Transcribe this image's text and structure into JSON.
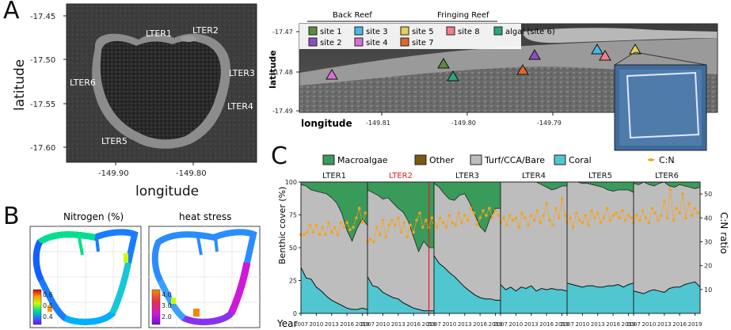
{
  "panels": {
    "a": {
      "letter": "A"
    },
    "b": {
      "letter": "B"
    },
    "c": {
      "letter": "C"
    }
  },
  "map_a": {
    "x_label": "longitude",
    "y_label": "latitude",
    "y_ticks": [
      "-17.45",
      "-17.50",
      "-17.55",
      "-17.60"
    ],
    "x_ticks": [
      "-149.90",
      "-149.80"
    ],
    "sites": [
      "LTER1",
      "LTER2",
      "LTER3",
      "LTER4",
      "LTER5",
      "LTER6"
    ]
  },
  "map_sites": {
    "x_label": "longitude",
    "y_label": "latitude",
    "y_ticks": [
      "-17.47",
      "-17.48",
      "-17.49"
    ],
    "x_ticks": [
      "-149.81",
      "-149.80",
      "-149.79"
    ],
    "legend": {
      "back_reef_title": "Back Reef",
      "fringing_reef_title": "Fringing Reef",
      "items": [
        {
          "label": "site 1",
          "color": "#5e8a3c"
        },
        {
          "label": "site 2",
          "color": "#8b4fc4"
        },
        {
          "label": "site 3",
          "color": "#48b8e8"
        },
        {
          "label": "site 4",
          "color": "#d86fd8"
        },
        {
          "label": "site 5",
          "color": "#e8cf55"
        },
        {
          "label": "site 7",
          "color": "#e0662a"
        },
        {
          "label": "site 8",
          "color": "#ef7f8a"
        },
        {
          "label": "algal (site 6)",
          "color": "#2ea47a"
        }
      ]
    }
  },
  "maps_b": {
    "nitrogen": {
      "title": "Nitrogen (%)",
      "ticks": [
        "0.6",
        "0.5",
        "0.4"
      ]
    },
    "heat": {
      "title": "heat stress",
      "ticks": [
        "4.0",
        "3.0",
        "2.0"
      ]
    }
  },
  "colors": {
    "macroalgae": "#3a9a5a",
    "other": "#7a5a10",
    "turf": "#bdbdbd",
    "coral": "#4fc6d0",
    "cn": "#f7a21b",
    "highlight": "#e02020"
  },
  "chart_data": {
    "type": "area",
    "title": "",
    "legend": [
      {
        "label": "Macroalgae",
        "color": "#3a9a5a"
      },
      {
        "label": "Other",
        "color": "#7a5a10"
      },
      {
        "label": "Turf/CCA/Bare",
        "color": "#bdbdbd"
      },
      {
        "label": "Coral",
        "color": "#4fc6d0"
      },
      {
        "label": "C:N",
        "color": "#f7a21b"
      }
    ],
    "xlabel": "Year",
    "ylabel": "Benthic cover (%)",
    "y2label": "C:N ratio",
    "x_ticks": [
      "2007",
      "2010",
      "2013",
      "2016",
      "2019"
    ],
    "y_ticks": [
      "0",
      "25",
      "50",
      "75",
      "100"
    ],
    "y2_ticks": [
      "10",
      "20",
      "30",
      "40",
      "50"
    ],
    "ylim": [
      0,
      100
    ],
    "y2lim": [
      0,
      55
    ],
    "xlim": [
      2007,
      2020
    ],
    "series_years": [
      2007,
      2008,
      2009,
      2010,
      2011,
      2012,
      2013,
      2014,
      2015,
      2016,
      2017,
      2018,
      2019,
      2020
    ],
    "panels": [
      {
        "name": "LTER1",
        "highlight": false,
        "coral": [
          35,
          27,
          26,
          20,
          17,
          13,
          10,
          8,
          6,
          4,
          3,
          3,
          4,
          3
        ],
        "coral_plus_turf": [
          98,
          97,
          94,
          93,
          92,
          91,
          88,
          84,
          76,
          63,
          55,
          65,
          72,
          67
        ],
        "cn_years": [
          2007,
          2007.6,
          2008.2,
          2008.8,
          2009.4,
          2010,
          2010.6,
          2011.2,
          2011.8,
          2012.4,
          2013,
          2013.6,
          2014.2,
          2014.8,
          2015.4,
          2016,
          2016.6,
          2017.2,
          2017.8,
          2018.4,
          2019,
          2019.6
        ],
        "cn_values": [
          33,
          33,
          34,
          37,
          34,
          37,
          33,
          36,
          33,
          38,
          34,
          36,
          33,
          38,
          36,
          38,
          35,
          36,
          40,
          44,
          38,
          42
        ]
      },
      {
        "name": "LTER2",
        "highlight": true,
        "coral": [
          28,
          21,
          20,
          16,
          14,
          12,
          11,
          8,
          6,
          4,
          3,
          2,
          2,
          2
        ],
        "coral_plus_turf": [
          94,
          92,
          90,
          87,
          88,
          84,
          80,
          77,
          70,
          58,
          47,
          55,
          50,
          50
        ],
        "cn_years": [
          2007,
          2007.6,
          2008.2,
          2008.8,
          2009.4,
          2010,
          2010.6,
          2011.2,
          2011.8,
          2012.4,
          2013,
          2013.6,
          2014.2,
          2014.8,
          2015.4,
          2016,
          2016.6,
          2017.2,
          2017.8,
          2018.4,
          2019,
          2019.6
        ],
        "cn_values": [
          30,
          31,
          30,
          36,
          33,
          39,
          32,
          37,
          39,
          37,
          40,
          34,
          38,
          32,
          37,
          34,
          39,
          42,
          36,
          39,
          36,
          40
        ]
      },
      {
        "name": "LTER3",
        "highlight": false,
        "coral": [
          44,
          38,
          35,
          31,
          28,
          24,
          20,
          17,
          14,
          12,
          11,
          11,
          10,
          10
        ],
        "coral_plus_turf": [
          99,
          96,
          91,
          87,
          86,
          90,
          91,
          84,
          75,
          66,
          62,
          73,
          80,
          80
        ],
        "cn_years": [
          2007,
          2007.6,
          2008.2,
          2008.8,
          2009.4,
          2010,
          2010.6,
          2011.2,
          2011.8,
          2012.4,
          2013,
          2013.6,
          2014.2,
          2014.8,
          2015.4,
          2016,
          2016.6,
          2017.2,
          2017.8,
          2018.4,
          2019,
          2019.6
        ],
        "cn_values": [
          38,
          36,
          40,
          38,
          36,
          41,
          38,
          37,
          42,
          38,
          41,
          39,
          44,
          42,
          37,
          40,
          43,
          41,
          44,
          40,
          43,
          41
        ]
      },
      {
        "name": "LTER4",
        "highlight": false,
        "coral": [
          22,
          18,
          20,
          17,
          20,
          19,
          21,
          17,
          19,
          18,
          19,
          18,
          18,
          17
        ],
        "coral_plus_turf": [
          100,
          100,
          100,
          100,
          100,
          100,
          100,
          100,
          98,
          96,
          94,
          95,
          97,
          97
        ],
        "cn_years": [
          2007,
          2007.6,
          2008.2,
          2008.8,
          2009.4,
          2010,
          2010.6,
          2011.2,
          2011.8,
          2012.4,
          2013,
          2013.6,
          2014.2,
          2014.8,
          2015.4,
          2016,
          2016.6,
          2017.2,
          2017.8,
          2018.4,
          2019,
          2019.6
        ],
        "cn_values": [
          38,
          40,
          37,
          41,
          39,
          40,
          36,
          42,
          40,
          37,
          41,
          39,
          43,
          38,
          41,
          46,
          39,
          37,
          44,
          40,
          48,
          41
        ]
      },
      {
        "name": "LTER5",
        "highlight": false,
        "coral": [
          23,
          22,
          21,
          20,
          21,
          21,
          20,
          20,
          21,
          21,
          22,
          20,
          22,
          23
        ],
        "coral_plus_turf": [
          100,
          100,
          100,
          99,
          99,
          98,
          97,
          96,
          94,
          93,
          94,
          94,
          94,
          92
        ],
        "cn_years": [
          2007,
          2007.6,
          2008.2,
          2008.8,
          2009.4,
          2010,
          2010.6,
          2011.2,
          2011.8,
          2012.4,
          2013,
          2013.6,
          2014.2,
          2014.8,
          2015.4,
          2016,
          2016.6,
          2017.2,
          2017.8,
          2018.4,
          2019,
          2019.6
        ],
        "cn_values": [
          38,
          40,
          36,
          42,
          39,
          38,
          41,
          37,
          43,
          40,
          42,
          38,
          40,
          44,
          39,
          41,
          42,
          40,
          43,
          39,
          41,
          40
        ]
      },
      {
        "name": "LTER6",
        "highlight": false,
        "coral": [
          17,
          16,
          15,
          17,
          18,
          17,
          16,
          19,
          20,
          20,
          22,
          23,
          24,
          20
        ],
        "coral_plus_turf": [
          99,
          98,
          100,
          98,
          97,
          99,
          100,
          97,
          96,
          98,
          97,
          96,
          95,
          96
        ],
        "cn_years": [
          2007,
          2007.6,
          2008.2,
          2008.8,
          2009.4,
          2010,
          2010.6,
          2011.2,
          2011.8,
          2012.4,
          2013,
          2013.6,
          2014.2,
          2014.8,
          2015.4,
          2016,
          2016.6,
          2017.2,
          2017.8,
          2018.4,
          2019,
          2019.6
        ],
        "cn_values": [
          38,
          41,
          39,
          43,
          40,
          38,
          44,
          42,
          39,
          41,
          47,
          40,
          52,
          39,
          44,
          42,
          50,
          40,
          46,
          41,
          44,
          42
        ]
      }
    ]
  }
}
